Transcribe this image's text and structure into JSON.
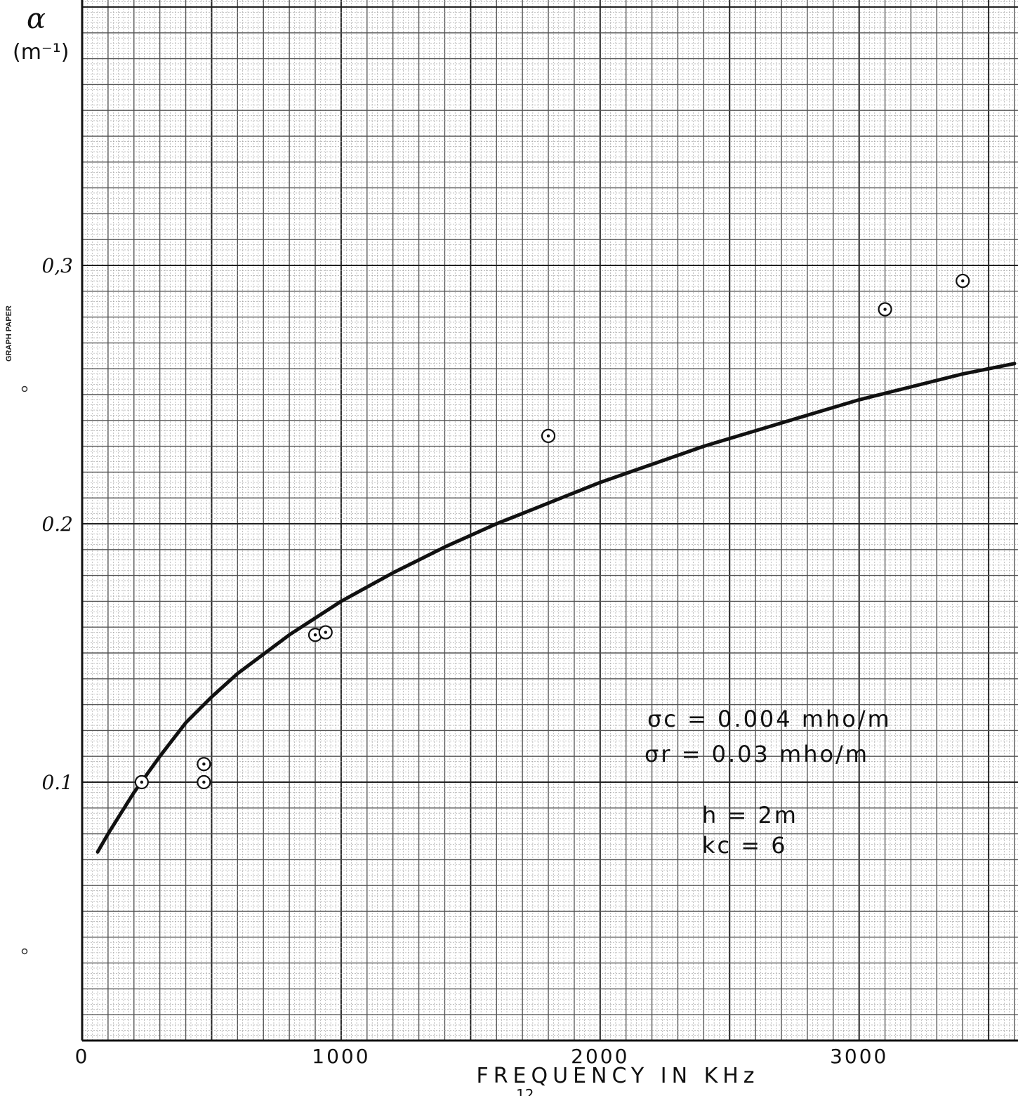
{
  "chart_data": {
    "type": "scatter",
    "ylabel_symbol": "α",
    "ylabel_unit": "(m⁻¹)",
    "xlabel": "FREQUENCY IN KHz",
    "x_ticks": [
      "0",
      "1000",
      "2000",
      "3000"
    ],
    "x_tick_values": [
      0,
      1000,
      2000,
      3000
    ],
    "y_ticks": [
      "0.1",
      "0.2",
      "0,3"
    ],
    "y_tick_values": [
      0.1,
      0.2,
      0.3
    ],
    "xlim": [
      0,
      3600
    ],
    "ylim": [
      0,
      0.4
    ],
    "grid": true,
    "series": [
      {
        "kind": "points",
        "x": [
          230,
          470,
          470,
          900,
          940,
          1800,
          3100,
          3400
        ],
        "y": [
          0.1,
          0.1,
          0.107,
          0.157,
          0.158,
          0.234,
          0.283,
          0.294
        ]
      },
      {
        "kind": "curve",
        "x": [
          60,
          100,
          150,
          200,
          300,
          400,
          500,
          600,
          800,
          1000,
          1200,
          1400,
          1600,
          1800,
          2000,
          2200,
          2400,
          2600,
          2800,
          3000,
          3200,
          3400,
          3600
        ],
        "y": [
          0.073,
          0.08,
          0.088,
          0.096,
          0.11,
          0.123,
          0.133,
          0.142,
          0.157,
          0.17,
          0.181,
          0.191,
          0.2,
          0.208,
          0.216,
          0.223,
          0.23,
          0.236,
          0.242,
          0.248,
          0.253,
          0.258,
          0.262
        ]
      }
    ],
    "annotations": [
      "σc = 0.004 mho/m",
      "σr = 0.03 mho/m",
      "h = 2m",
      "kc = 6"
    ]
  },
  "page": {
    "side_label": "GRAPH PAPER",
    "footer_fragment": "12"
  }
}
